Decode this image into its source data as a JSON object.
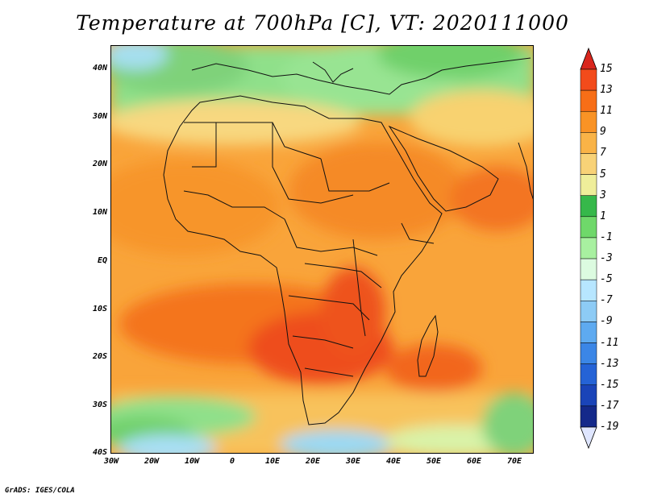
{
  "title": "Temperature at 700hPa [C], VT: 2020111000",
  "credit": "GrADS: IGES/COLA",
  "map": {
    "lon_range": [
      -30,
      75
    ],
    "lat_range": [
      -40,
      45
    ],
    "lat_ticks": [
      "40N",
      "30N",
      "20N",
      "10N",
      "EQ",
      "10S",
      "20S",
      "30S",
      "40S"
    ],
    "lon_ticks": [
      "30W",
      "20W",
      "10W",
      "0",
      "10E",
      "20E",
      "30E",
      "40E",
      "50E",
      "60E",
      "70E"
    ]
  },
  "colorbar": {
    "labels": [
      "15",
      "13",
      "11",
      "9",
      "7",
      "5",
      "3",
      "1",
      "-1",
      "-3",
      "-5",
      "-7",
      "-9",
      "-11",
      "-13",
      "-15",
      "-17",
      "-19"
    ],
    "colors": [
      "#d9261d",
      "#f24b1b",
      "#f76e17",
      "#f99325",
      "#f9b347",
      "#f8d277",
      "#efee9a",
      "#36b84a",
      "#6fd86a",
      "#a8f0a0",
      "#dcfbe0",
      "#b7e6ff",
      "#8dcbf5",
      "#5eaaf0",
      "#3b86e6",
      "#2563d6",
      "#1a44b8",
      "#14298a",
      "#0b1470"
    ]
  }
}
